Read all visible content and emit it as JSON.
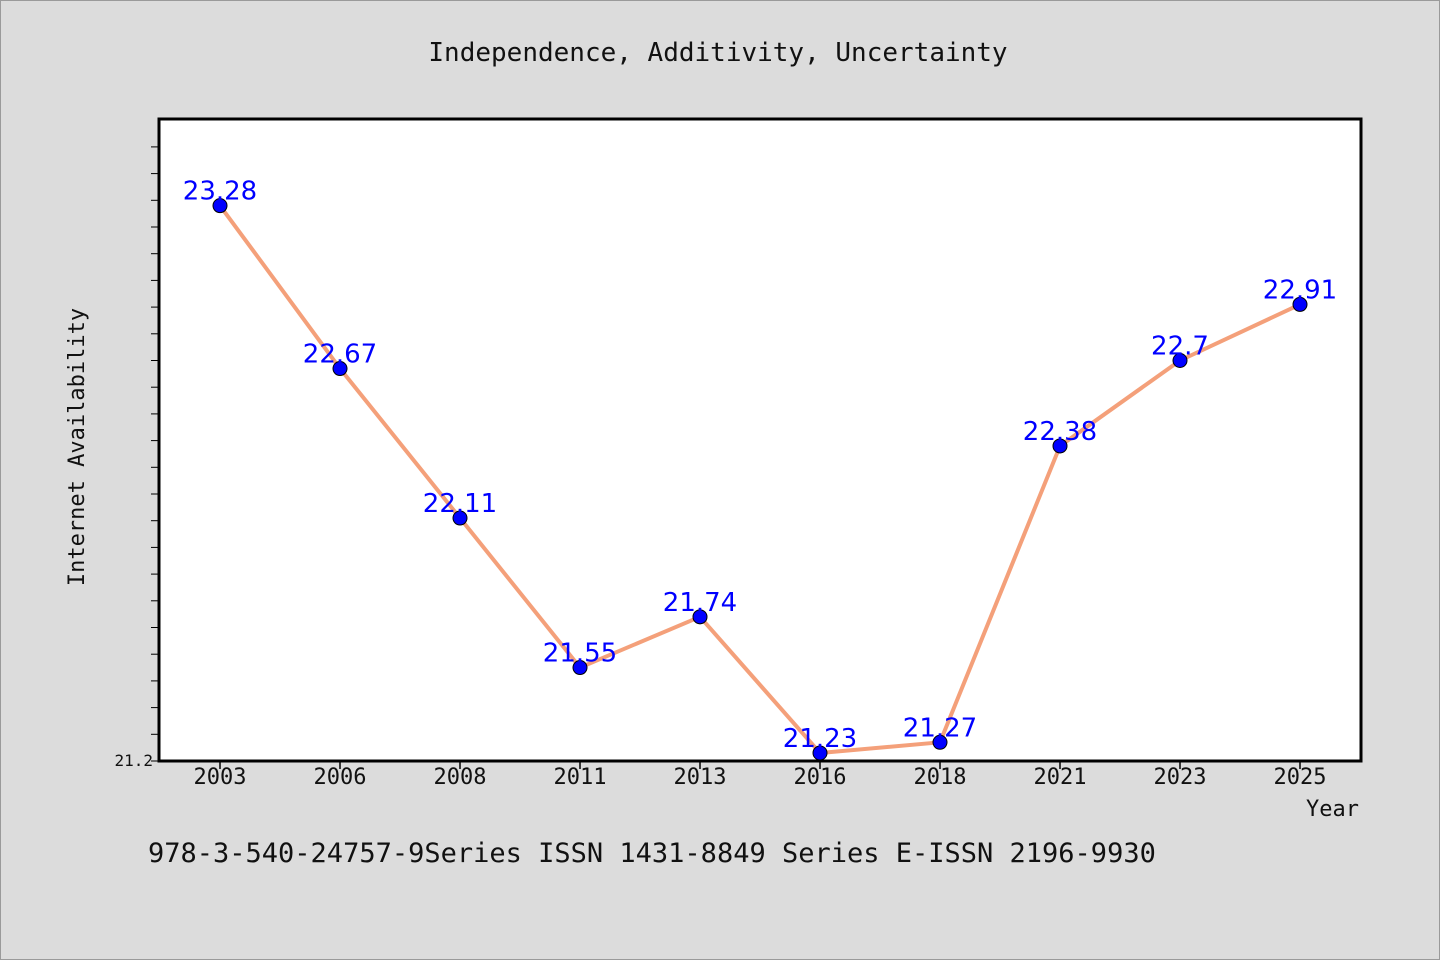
{
  "chart_data": {
    "type": "line",
    "title": "Independence, Additivity, Uncertainty",
    "xlabel": "Year",
    "ylabel": "Internet Availability",
    "categories": [
      "2003",
      "2006",
      "2008",
      "2011",
      "2013",
      "2016",
      "2018",
      "2021",
      "2023",
      "2025"
    ],
    "series": [
      {
        "values": [
          23.28,
          22.67,
          22.11,
          21.55,
          21.74,
          21.23,
          21.27,
          22.38,
          22.7,
          22.91
        ],
        "labels": [
          "23.28",
          "22.67",
          "22.11",
          "21.55",
          "21.74",
          "21.23",
          "21.27",
          "22.38",
          "22.7",
          "22.91"
        ]
      }
    ],
    "ylim": [
      21.2,
      23.6
    ],
    "ytick_labels": [
      "21.2"
    ],
    "y_minor_tick_step": 0.1,
    "grid": false,
    "line_color": "#f4a07a",
    "marker_color": "#0000ff"
  },
  "footer": "978-3-540-24757-9Series ISSN 1431-8849 Series E-ISSN 2196-9930",
  "colors": {
    "background": "#dcdcdc",
    "plot_background": "#ffffff"
  }
}
